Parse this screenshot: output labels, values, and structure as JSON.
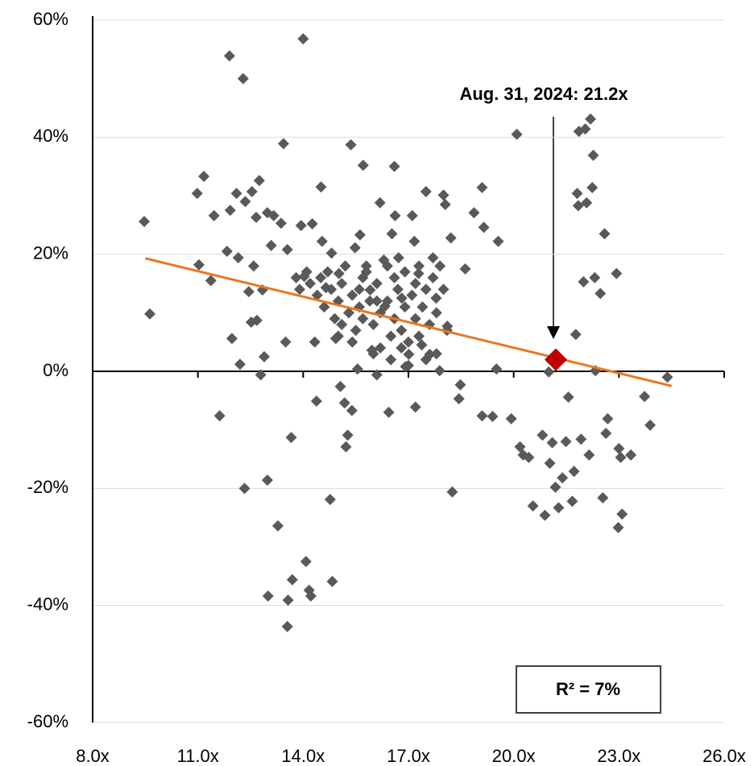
{
  "chart_data": {
    "type": "scatter",
    "color": "#595959",
    "grid": true,
    "xlim": [
      8,
      26
    ],
    "ylim": [
      -60,
      60
    ],
    "xticks": [
      {
        "value": 8,
        "label": "8.0x"
      },
      {
        "value": 11,
        "label": "11.0x"
      },
      {
        "value": 14,
        "label": "14.0x"
      },
      {
        "value": 17,
        "label": "17.0x"
      },
      {
        "value": 20,
        "label": "20.0x"
      },
      {
        "value": 23,
        "label": "23.0x"
      },
      {
        "value": 26,
        "label": "26.0x"
      }
    ],
    "yticks": [
      {
        "value": 60,
        "label": "60%"
      },
      {
        "value": 40,
        "label": "40%"
      },
      {
        "value": 20,
        "label": "20%"
      },
      {
        "value": 0,
        "label": "0%"
      },
      {
        "value": -20,
        "label": "-20%"
      },
      {
        "value": -40,
        "label": "-40%"
      },
      {
        "value": -60,
        "label": "-60%"
      }
    ],
    "x": [
      9.47,
      9.63,
      10.98,
      11.17,
      11.03,
      11.37,
      11.46,
      11.62,
      11.9,
      11.92,
      11.83,
      11.97,
      12.1,
      12.15,
      12.2,
      12.29,
      12.33,
      12.35,
      12.54,
      12.45,
      12.52,
      12.59,
      12.66,
      12.68,
      12.75,
      12.79,
      12.84,
      12.89,
      12.98,
      12.98,
      13.0,
      13.09,
      13.16,
      13.28,
      13.37,
      13.44,
      13.5,
      13.55,
      13.57,
      13.66,
      13.69,
      13.55,
      14.0,
      13.94,
      14.03,
      14.08,
      14.17,
      14.22,
      14.26,
      14.33,
      14.38,
      14.51,
      14.54,
      14.65,
      14.77,
      14.81,
      14.83,
      14.93,
      15.02,
      15.06,
      15.18,
      15.22,
      15.27,
      15.36,
      15.39,
      15.48,
      15.55,
      15.62,
      15.71,
      15.8,
      15.91,
      15.96,
      16.1,
      16.19,
      16.33,
      16.44,
      16.53,
      16.6,
      16.62,
      16.72,
      16.81,
      16.92,
      17.01,
      17.11,
      17.17,
      17.2,
      17.29,
      17.38,
      17.5,
      17.61,
      17.7,
      17.79,
      17.89,
      18.0,
      18.05,
      18.11,
      18.21,
      18.25,
      18.44,
      18.48,
      18.62,
      18.87,
      19.1,
      19.15,
      19.1,
      19.4,
      19.56,
      19.51,
      19.93,
      20.09,
      20.18,
      20.27,
      20.43,
      20.55,
      20.82,
      20.89,
      21.0,
      21.03,
      21.1,
      21.19,
      21.28,
      21.39,
      21.49,
      21.56,
      21.67,
      21.72,
      21.77,
      21.81,
      21.84,
      21.86,
      21.92,
      21.99,
      22.04,
      22.08,
      22.15,
      22.19,
      22.24,
      22.27,
      22.31,
      22.33,
      22.47,
      22.54,
      22.59,
      22.63,
      22.68,
      22.93,
      23.0,
      23.05,
      23.09,
      22.98,
      23.34,
      23.73,
      23.89,
      24.38,
      14.2,
      14.5,
      14.8,
      15.0,
      15.1,
      15.3,
      15.4,
      15.6,
      15.7,
      15.9,
      16.0,
      16.1,
      16.2,
      16.4,
      16.5,
      16.6,
      16.7,
      16.8,
      16.9,
      17.0,
      17.1,
      17.2,
      17.3,
      17.4,
      17.5,
      17.6,
      17.7,
      17.8,
      17.9,
      18.0,
      15.2,
      15.5,
      15.8,
      16.3,
      16.9,
      17.3,
      14.6,
      14.9,
      15.0,
      16.0,
      16.5,
      14.4,
      14.7,
      15.4,
      16.2,
      17.0,
      17.8,
      18.1,
      13.9,
      14.1,
      13.8,
      16.6,
      16.4,
      15.1,
      15.7,
      17.2,
      16.8,
      17.5,
      15.6,
      16.1
    ],
    "values": [
      25.6,
      9.8,
      30.4,
      33.3,
      18.2,
      15.5,
      26.6,
      -7.6,
      53.9,
      27.5,
      20.5,
      5.6,
      30.4,
      19.4,
      1.2,
      50.0,
      -20.0,
      29.0,
      30.7,
      13.6,
      8.4,
      18.0,
      26.3,
      8.7,
      32.6,
      -0.6,
      13.9,
      2.5,
      -18.6,
      27.1,
      -38.4,
      21.5,
      26.6,
      -26.4,
      25.3,
      38.9,
      5.0,
      20.8,
      -39.1,
      -11.3,
      -35.6,
      -43.6,
      56.8,
      24.9,
      16.2,
      -32.5,
      -37.4,
      -38.4,
      25.2,
      5.0,
      -5.1,
      31.5,
      22.2,
      14.3,
      -21.9,
      20.2,
      -35.9,
      5.6,
      16.7,
      -2.6,
      -5.4,
      -12.9,
      -10.9,
      38.7,
      -6.7,
      21.1,
      0.4,
      23.3,
      35.2,
      18.0,
      13.9,
      3.6,
      -0.6,
      28.8,
      11.1,
      -7.0,
      23.5,
      35.0,
      26.6,
      19.4,
      12.5,
      0.8,
      2.9,
      26.6,
      22.2,
      -6.1,
      16.7,
      4.5,
      30.7,
      2.9,
      19.4,
      12.5,
      0.1,
      30.1,
      28.5,
      7.7,
      22.8,
      -20.6,
      -4.7,
      -2.3,
      17.5,
      27.1,
      31.4,
      24.6,
      -7.6,
      -7.7,
      22.2,
      0.4,
      -8.1,
      40.5,
      -12.9,
      -14.3,
      -14.7,
      -23.0,
      -10.9,
      -24.6,
      -0.1,
      -15.7,
      -12.2,
      -19.8,
      -23.3,
      -18.2,
      -12.0,
      -4.4,
      -22.2,
      -17.1,
      6.3,
      30.4,
      28.3,
      41.0,
      -11.6,
      15.3,
      41.4,
      28.8,
      -14.3,
      43.1,
      31.4,
      36.9,
      16.0,
      0.1,
      13.3,
      -21.6,
      23.5,
      -10.6,
      -8.1,
      16.7,
      -13.2,
      -14.7,
      -24.4,
      -26.7,
      -14.3,
      -4.3,
      -9.2,
      -1.0,
      15,
      16,
      14,
      12,
      15,
      10,
      13,
      11,
      9,
      12,
      8,
      15,
      10,
      12,
      6,
      9,
      14,
      7,
      11,
      5,
      13,
      9,
      6,
      11,
      14,
      8,
      16,
      10,
      18,
      14,
      18,
      7,
      17,
      19,
      17,
      18,
      11,
      9,
      6,
      3,
      2,
      13,
      17,
      5,
      4,
      1,
      3,
      7,
      14,
      17,
      16,
      16,
      18,
      8,
      16,
      15,
      4,
      2,
      14,
      12
    ],
    "trendline": {
      "x": [
        9.5,
        24.5
      ],
      "y": [
        19.3,
        -2.5
      ],
      "color": "#e87722"
    },
    "highlight": {
      "x": 21.2,
      "y": 2,
      "color": "#c00000"
    },
    "annotation": "Aug. 31, 2024: 21.2x",
    "r_squared_label": "R²  = 7%"
  }
}
